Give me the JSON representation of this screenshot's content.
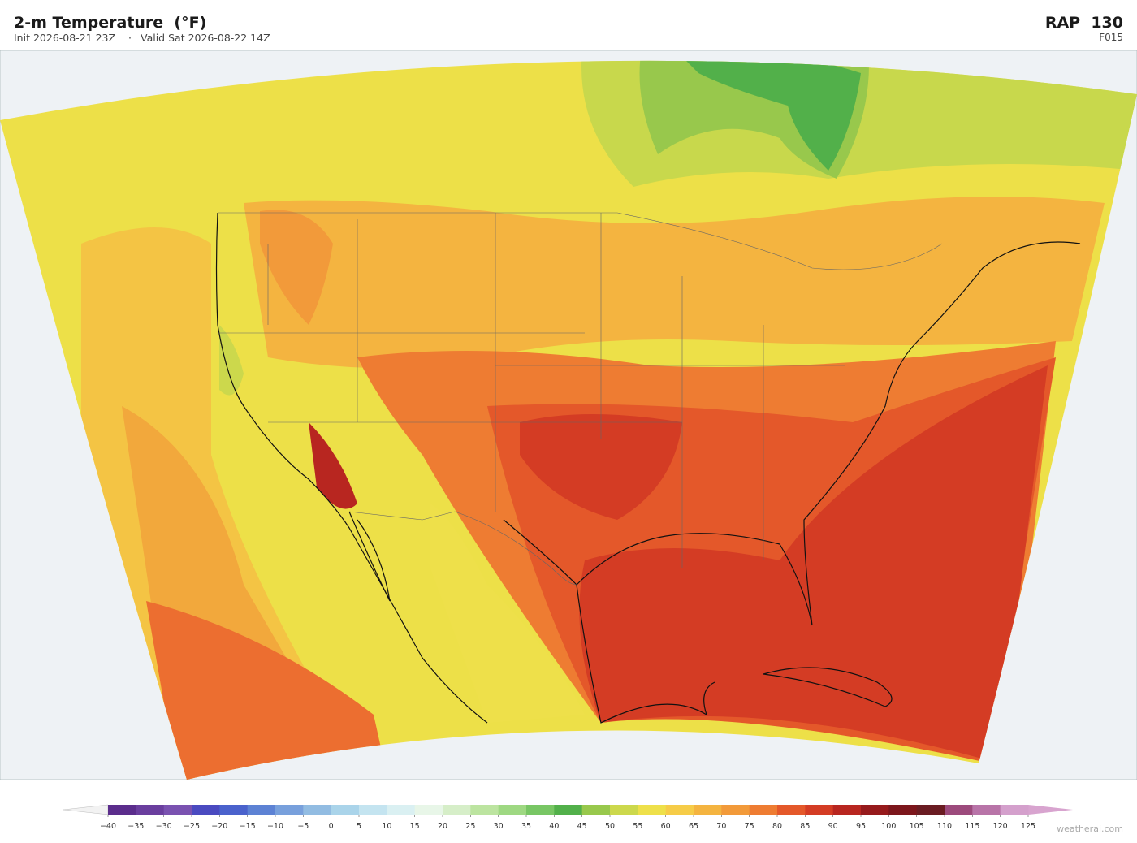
{
  "header": {
    "title": "2-m Temperature  (°F)",
    "init": "Init 2026-08-21 23Z",
    "separator": "·",
    "valid": "Valid Sat 2026-08-22 14Z",
    "model": "RAP  130",
    "forecast": "F015"
  },
  "colorbar": {
    "under_color": "#f2f2f2",
    "over_color": "#d8a4cf",
    "colors": [
      "#5b2d8c",
      "#6a3e9e",
      "#7a52b0",
      "#4a4ac0",
      "#4a62cc",
      "#5d82d4",
      "#78a0dc",
      "#92bce2",
      "#aad4ea",
      "#c4e4f0",
      "#daf0f2",
      "#e8f6e8",
      "#d6eec8",
      "#bce4a0",
      "#9ed882",
      "#78c664",
      "#52b04a",
      "#98c84c",
      "#ccd84c",
      "#eee04a",
      "#f6cc48",
      "#f4b440",
      "#f29a3a",
      "#ee7c32",
      "#e4582a",
      "#d43c24",
      "#b82620",
      "#961a1c",
      "#7c161c",
      "#6a1c22",
      "#9c4a7c",
      "#b874a8",
      "#d4a0cc"
    ],
    "ticks": [
      {
        "value": -40,
        "label": "−40"
      },
      {
        "value": -35,
        "label": "−35"
      },
      {
        "value": -30,
        "label": "−30"
      },
      {
        "value": -25,
        "label": "−25"
      },
      {
        "value": -20,
        "label": "−20"
      },
      {
        "value": -15,
        "label": "−15"
      },
      {
        "value": -10,
        "label": "−10"
      },
      {
        "value": -5,
        "label": "−5"
      },
      0,
      5,
      10,
      15,
      20,
      25,
      30,
      35,
      40,
      45,
      50,
      55,
      60,
      65,
      70,
      75,
      80,
      85,
      90,
      95,
      100,
      105,
      110,
      115,
      120,
      125
    ]
  },
  "footer": {
    "credit": "weatherai.com"
  }
}
